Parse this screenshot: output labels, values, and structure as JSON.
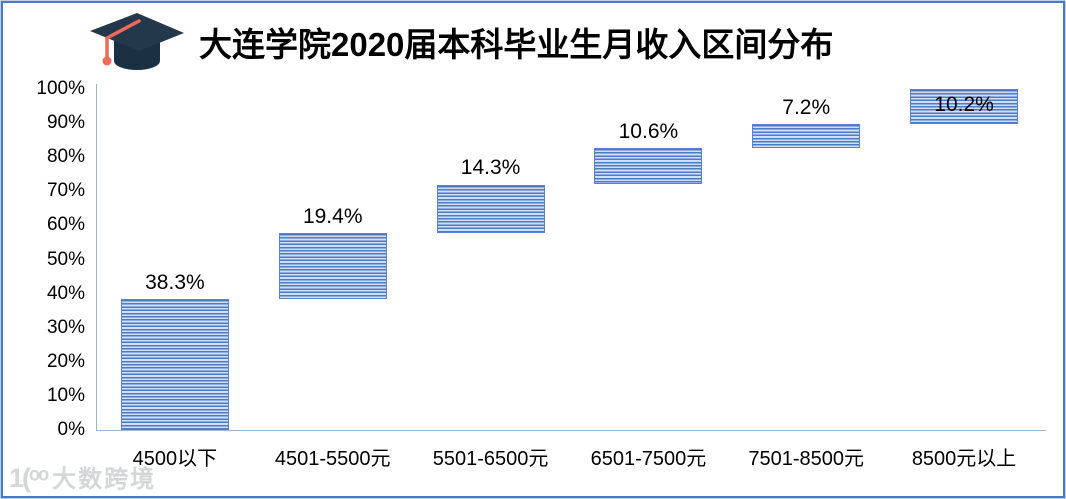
{
  "title": {
    "text": "大连学院2020届本科毕业生月收入区间分布"
  },
  "watermark": {
    "logo": "1(ᵒᵒ",
    "text": "大数跨境"
  },
  "colors": {
    "frame_border": "#4a79c4",
    "axis_line": "#9db4ce",
    "bar_stripe_dark": "#4d7ac4",
    "bar_stripe_light": "#cfdff4",
    "cap_icon_dark": "#24384c",
    "cap_icon_darker": "#1c3044",
    "tassel_red": "#ed6a5a"
  },
  "chart_data": {
    "type": "bar",
    "subtype": "floating-cumulative-waterfall",
    "title": "大连学院2020届本科毕业生月收入区间分布",
    "categories": [
      "4500以下",
      "4501-5500元",
      "5501-6500元",
      "6501-7500元",
      "7501-8500元",
      "8500元以上"
    ],
    "values": [
      38.3,
      19.4,
      14.3,
      10.6,
      7.2,
      10.2
    ],
    "labels": [
      "38.3%",
      "19.4%",
      "14.3%",
      "10.6%",
      "7.2%",
      "10.2%"
    ],
    "label_placement": [
      "above",
      "above",
      "above",
      "above",
      "above",
      "inside"
    ],
    "cumulative": true,
    "xlabel": "",
    "ylabel": "",
    "ylim": [
      0,
      100
    ],
    "y_ticks": [
      "0%",
      "10%",
      "20%",
      "30%",
      "40%",
      "50%",
      "60%",
      "70%",
      "80%",
      "90%",
      "100%"
    ],
    "grid": false,
    "legend": "none"
  }
}
